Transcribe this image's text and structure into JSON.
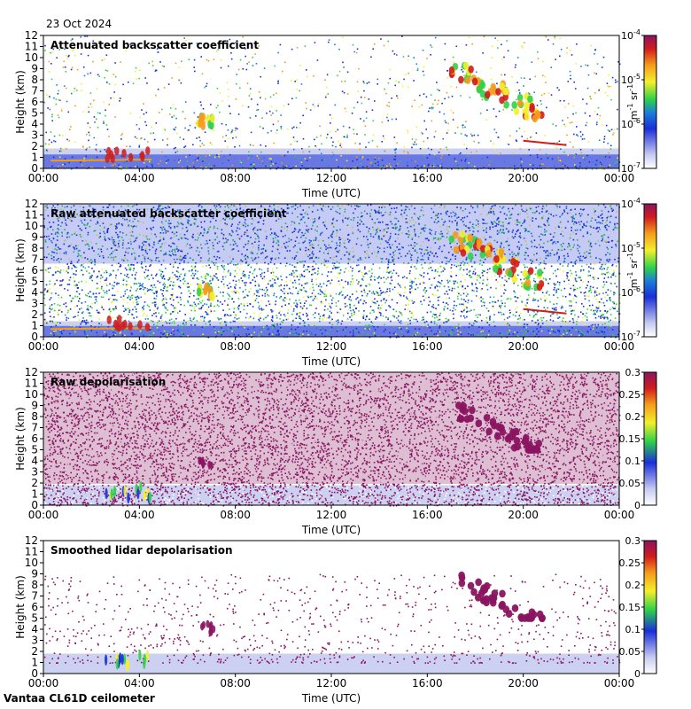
{
  "date_label": "23 Oct 2024",
  "footer": "Vantaa CL61D ceilometer",
  "colors": {
    "background_low": "#c8ccf0",
    "blue": "#1a2fd8",
    "green": "#2fd14a",
    "yellow": "#f3ef2c",
    "orange": "#f49a1c",
    "red": "#d01c1c",
    "purple": "#8a1460"
  },
  "chart_data": [
    {
      "type": "heatmap",
      "title": "Attenuated backscatter coefficient",
      "xlabel": "Time (UTC)",
      "ylabel": "Height (km)",
      "x_ticks": [
        "00:00",
        "04:00",
        "08:00",
        "12:00",
        "16:00",
        "20:00",
        "00:00"
      ],
      "y_ticks": [
        "0",
        "1",
        "2",
        "3",
        "4",
        "5",
        "6",
        "7",
        "8",
        "9",
        "10",
        "11",
        "12"
      ],
      "ylim": [
        0,
        12
      ],
      "colorbar": {
        "scale": "log",
        "range": [
          1e-07,
          0.0001
        ],
        "unit": "m-1 sr-1",
        "tick_labels": [
          "10-4",
          "10-5",
          "10-6",
          "10-7"
        ]
      }
    },
    {
      "type": "heatmap",
      "title": "Raw attenuated backscatter coefficient",
      "xlabel": "Time (UTC)",
      "ylabel": "Height (km)",
      "x_ticks": [
        "00:00",
        "04:00",
        "08:00",
        "12:00",
        "16:00",
        "20:00",
        "00:00"
      ],
      "y_ticks": [
        "0",
        "1",
        "2",
        "3",
        "4",
        "5",
        "6",
        "7",
        "8",
        "9",
        "10",
        "11",
        "12"
      ],
      "ylim": [
        0,
        12
      ],
      "colorbar": {
        "scale": "log",
        "range": [
          1e-07,
          0.0001
        ],
        "unit": "m-1 sr-1",
        "tick_labels": [
          "10-4",
          "10-5",
          "10-6",
          "10-7"
        ]
      }
    },
    {
      "type": "heatmap",
      "title": "Raw depolarisation",
      "xlabel": "Time (UTC)",
      "ylabel": "Height (km)",
      "x_ticks": [
        "00:00",
        "04:00",
        "08:00",
        "12:00",
        "16:00",
        "20:00",
        "00:00"
      ],
      "y_ticks": [
        "0",
        "1",
        "2",
        "3",
        "4",
        "5",
        "6",
        "7",
        "8",
        "9",
        "10",
        "11",
        "12"
      ],
      "ylim": [
        0,
        12
      ],
      "colorbar": {
        "scale": "linear",
        "range": [
          0,
          0.3
        ],
        "tick_labels": [
          "0.3",
          "0.25",
          "0.2",
          "0.15",
          "0.1",
          "0.05",
          "0"
        ]
      }
    },
    {
      "type": "heatmap",
      "title": "Smoothed lidar depolarisation",
      "xlabel": "Time (UTC)",
      "ylabel": "Height (km)",
      "x_ticks": [
        "00:00",
        "04:00",
        "08:00",
        "12:00",
        "16:00",
        "20:00",
        "00:00"
      ],
      "y_ticks": [
        "0",
        "1",
        "2",
        "3",
        "4",
        "5",
        "6",
        "7",
        "8",
        "9",
        "10",
        "11",
        "12"
      ],
      "ylim": [
        0,
        12
      ],
      "colorbar": {
        "scale": "linear",
        "range": [
          0,
          0.3
        ],
        "tick_labels": [
          "0.3",
          "0.25",
          "0.2",
          "0.15",
          "0.1",
          "0.05",
          "0"
        ]
      }
    }
  ]
}
